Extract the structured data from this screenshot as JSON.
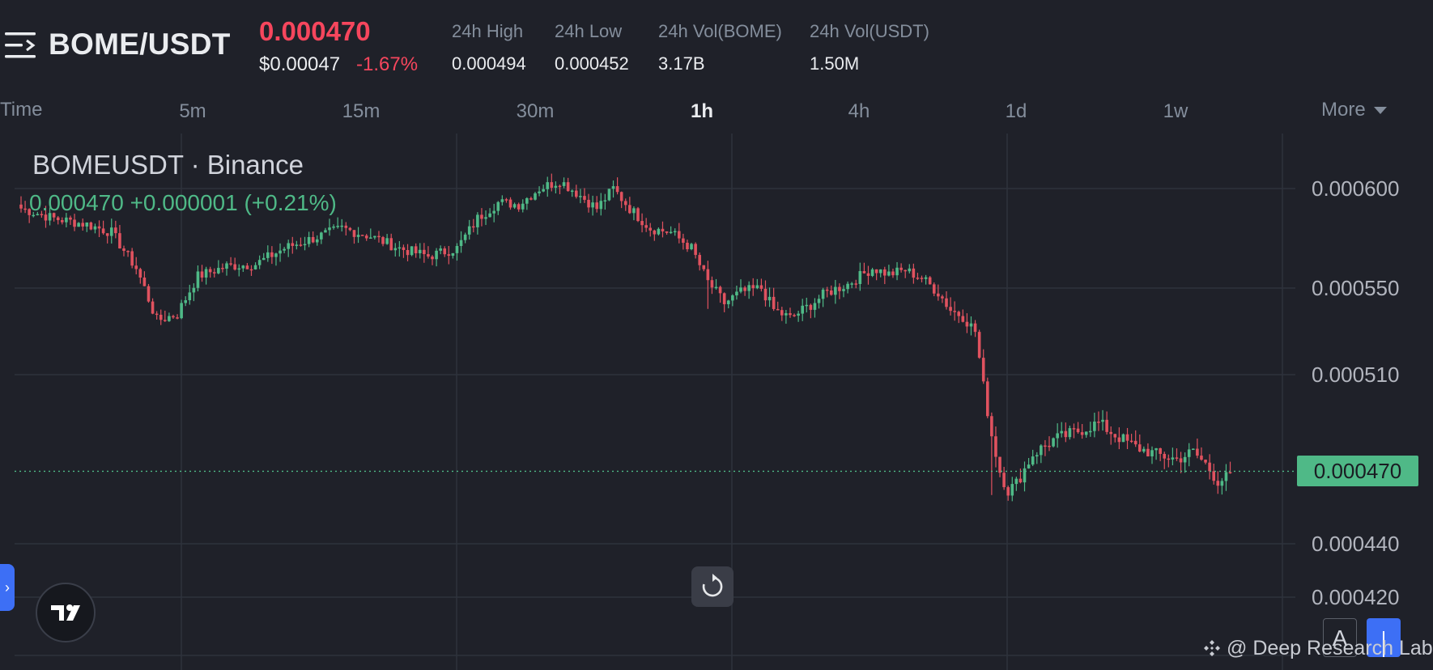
{
  "header": {
    "pair": "BOME/USDT",
    "last_price": "0.000470",
    "usd_price": "$0.00047",
    "change_pct": "-1.67%",
    "stats": [
      {
        "label": "24h High",
        "value": "0.000494"
      },
      {
        "label": "24h Low",
        "value": "0.000452"
      },
      {
        "label": "24h Vol(BOME)",
        "value": "3.17B"
      },
      {
        "label": "24h Vol(USDT)",
        "value": "1.50M"
      }
    ]
  },
  "timeframes": {
    "time_label": "Time",
    "items": [
      "5m",
      "15m",
      "30m",
      "1h",
      "4h",
      "1d",
      "1w"
    ],
    "active": "1h",
    "more_label": "More"
  },
  "chart": {
    "legend_title": "BOMEUSDT · Binance",
    "legend_ohlc": "0.000470  +0.000001 (+0.21%)",
    "current_price_tag": "0.000470",
    "y_ticks": [
      "0.000600",
      "0.000550",
      "0.000510",
      "0.000440",
      "0.000420"
    ],
    "up_color": "#4fb987",
    "down_color": "#e0525f",
    "grid_color": "#2e323c"
  },
  "chart_data": {
    "type": "candlestick",
    "title": "BOMEUSDT · Binance",
    "y_tick_labels": [
      "0.000600",
      "0.000550",
      "0.000510",
      "0.000440",
      "0.000420"
    ],
    "current_price": 0.00047,
    "close_path": [
      [
        0,
        0.00059
      ],
      [
        8,
        0.000585
      ],
      [
        16,
        0.000582
      ],
      [
        22,
        0.000578
      ],
      [
        28,
        0.00056
      ],
      [
        33,
        0.000535
      ],
      [
        38,
        0.000538
      ],
      [
        43,
        0.000556
      ],
      [
        50,
        0.000561
      ],
      [
        57,
        0.000562
      ],
      [
        64,
        0.00057
      ],
      [
        71,
        0.000575
      ],
      [
        78,
        0.00058
      ],
      [
        85,
        0.000576
      ],
      [
        92,
        0.00057
      ],
      [
        99,
        0.000566
      ],
      [
        106,
        0.00057
      ],
      [
        111,
        0.000585
      ],
      [
        116,
        0.000593
      ],
      [
        121,
        0.000592
      ],
      [
        126,
        0.0006
      ],
      [
        131,
        0.000604
      ],
      [
        135,
        0.000598
      ],
      [
        140,
        0.00059
      ],
      [
        144,
        0.0006
      ],
      [
        148,
        0.00059
      ],
      [
        153,
        0.00058
      ],
      [
        158,
        0.000578
      ],
      [
        163,
        0.00057
      ],
      [
        167,
        0.000553
      ],
      [
        171,
        0.000543
      ],
      [
        175,
        0.000548
      ],
      [
        180,
        0.00055
      ],
      [
        183,
        0.00054
      ],
      [
        187,
        0.000536
      ],
      [
        191,
        0.000541
      ],
      [
        196,
        0.000548
      ],
      [
        201,
        0.000552
      ],
      [
        207,
        0.00056
      ],
      [
        211,
        0.000557
      ],
      [
        215,
        0.000559
      ],
      [
        219,
        0.000555
      ],
      [
        223,
        0.000548
      ],
      [
        226,
        0.00054
      ],
      [
        229,
        0.000537
      ],
      [
        232,
        0.00053
      ],
      [
        234,
        0.000505
      ],
      [
        236,
        0.000485
      ],
      [
        238,
        0.00047
      ],
      [
        240,
        0.000462
      ],
      [
        242,
        0.000465
      ],
      [
        246,
        0.000477
      ],
      [
        251,
        0.000483
      ],
      [
        256,
        0.000486
      ],
      [
        262,
        0.00049
      ],
      [
        266,
        0.000485
      ],
      [
        271,
        0.00048
      ],
      [
        276,
        0.000477
      ],
      [
        281,
        0.000475
      ],
      [
        285,
        0.000478
      ],
      [
        288,
        0.000473
      ],
      [
        291,
        0.000466
      ],
      [
        294,
        0.000468
      ]
    ]
  }
}
